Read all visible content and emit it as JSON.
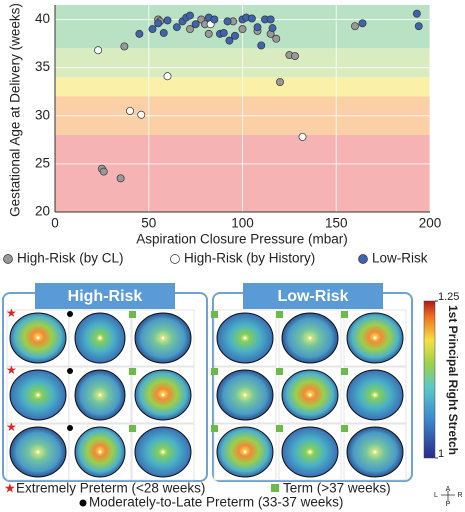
{
  "chart_data": {
    "type": "scatter",
    "xlabel": "Aspiration Closure Pressure (mbar)",
    "ylabel": "Gestational Age at Delivery (weeks)",
    "xlim": [
      0,
      200
    ],
    "ylim": [
      20,
      41.5
    ],
    "xticks": [
      0,
      50,
      100,
      150,
      200
    ],
    "yticks": [
      20,
      25,
      30,
      35,
      40
    ],
    "grid": true,
    "bands": [
      {
        "from": 20,
        "to": 28,
        "color": "#f6b3b3"
      },
      {
        "from": 28,
        "to": 32,
        "color": "#fbd0a6"
      },
      {
        "from": 32,
        "to": 34,
        "color": "#fbf0a8"
      },
      {
        "from": 34,
        "to": 37,
        "color": "#d9ecc0"
      },
      {
        "from": 37,
        "to": 41.5,
        "color": "#b8e2c3"
      }
    ],
    "series": [
      {
        "name": "High-Risk (by CL)",
        "color": "#999999",
        "x": [
          25,
          26,
          35,
          37,
          55,
          56,
          72,
          78,
          80,
          82,
          95,
          100,
          108,
          115,
          118,
          120,
          125,
          128,
          160
        ],
        "values": [
          24.5,
          24.2,
          23.5,
          37.2,
          40,
          39.8,
          39,
          40,
          39.5,
          38.5,
          39.8,
          39,
          38.8,
          38.5,
          38,
          33.5,
          36.3,
          36.2,
          39.3
        ]
      },
      {
        "name": "High-Risk (by History)",
        "color": "#ffffff",
        "x": [
          23,
          40,
          46,
          60,
          83,
          132
        ],
        "values": [
          36.8,
          30.5,
          30.1,
          34.1,
          39.5,
          27.8
        ]
      },
      {
        "name": "Low-Risk",
        "color": "#3e64b0",
        "x": [
          45,
          52,
          55,
          58,
          60,
          65,
          68,
          70,
          72,
          75,
          82,
          85,
          88,
          90,
          92,
          93,
          96,
          100,
          102,
          105,
          108,
          110,
          112,
          115,
          116,
          164,
          193,
          194
        ],
        "values": [
          38.5,
          39,
          39.6,
          38.6,
          39.9,
          39.2,
          39.8,
          40.2,
          40.4,
          39.5,
          40.2,
          40,
          38.5,
          38.6,
          39.8,
          37.8,
          38.3,
          40,
          40.2,
          40.1,
          39.2,
          37.3,
          40,
          40,
          39.1,
          39.6,
          40.6,
          39.3
        ]
      }
    ]
  },
  "panels": {
    "high_risk": "High-Risk",
    "low_risk": "Low-Risk"
  },
  "colorbar": {
    "label": "1st Principal Right Stretch",
    "lim": [
      1,
      1.25
    ],
    "ticks": [
      1,
      1.25
    ]
  },
  "legend": {
    "star": "Extremely Preterm (<28 weeks)",
    "square": "Term (>37 weeks)",
    "dot": "Moderately-to-Late Preterm (33-37 weeks)"
  },
  "orientation": {
    "a": "A",
    "l": "L",
    "r": "R",
    "p": "P"
  }
}
